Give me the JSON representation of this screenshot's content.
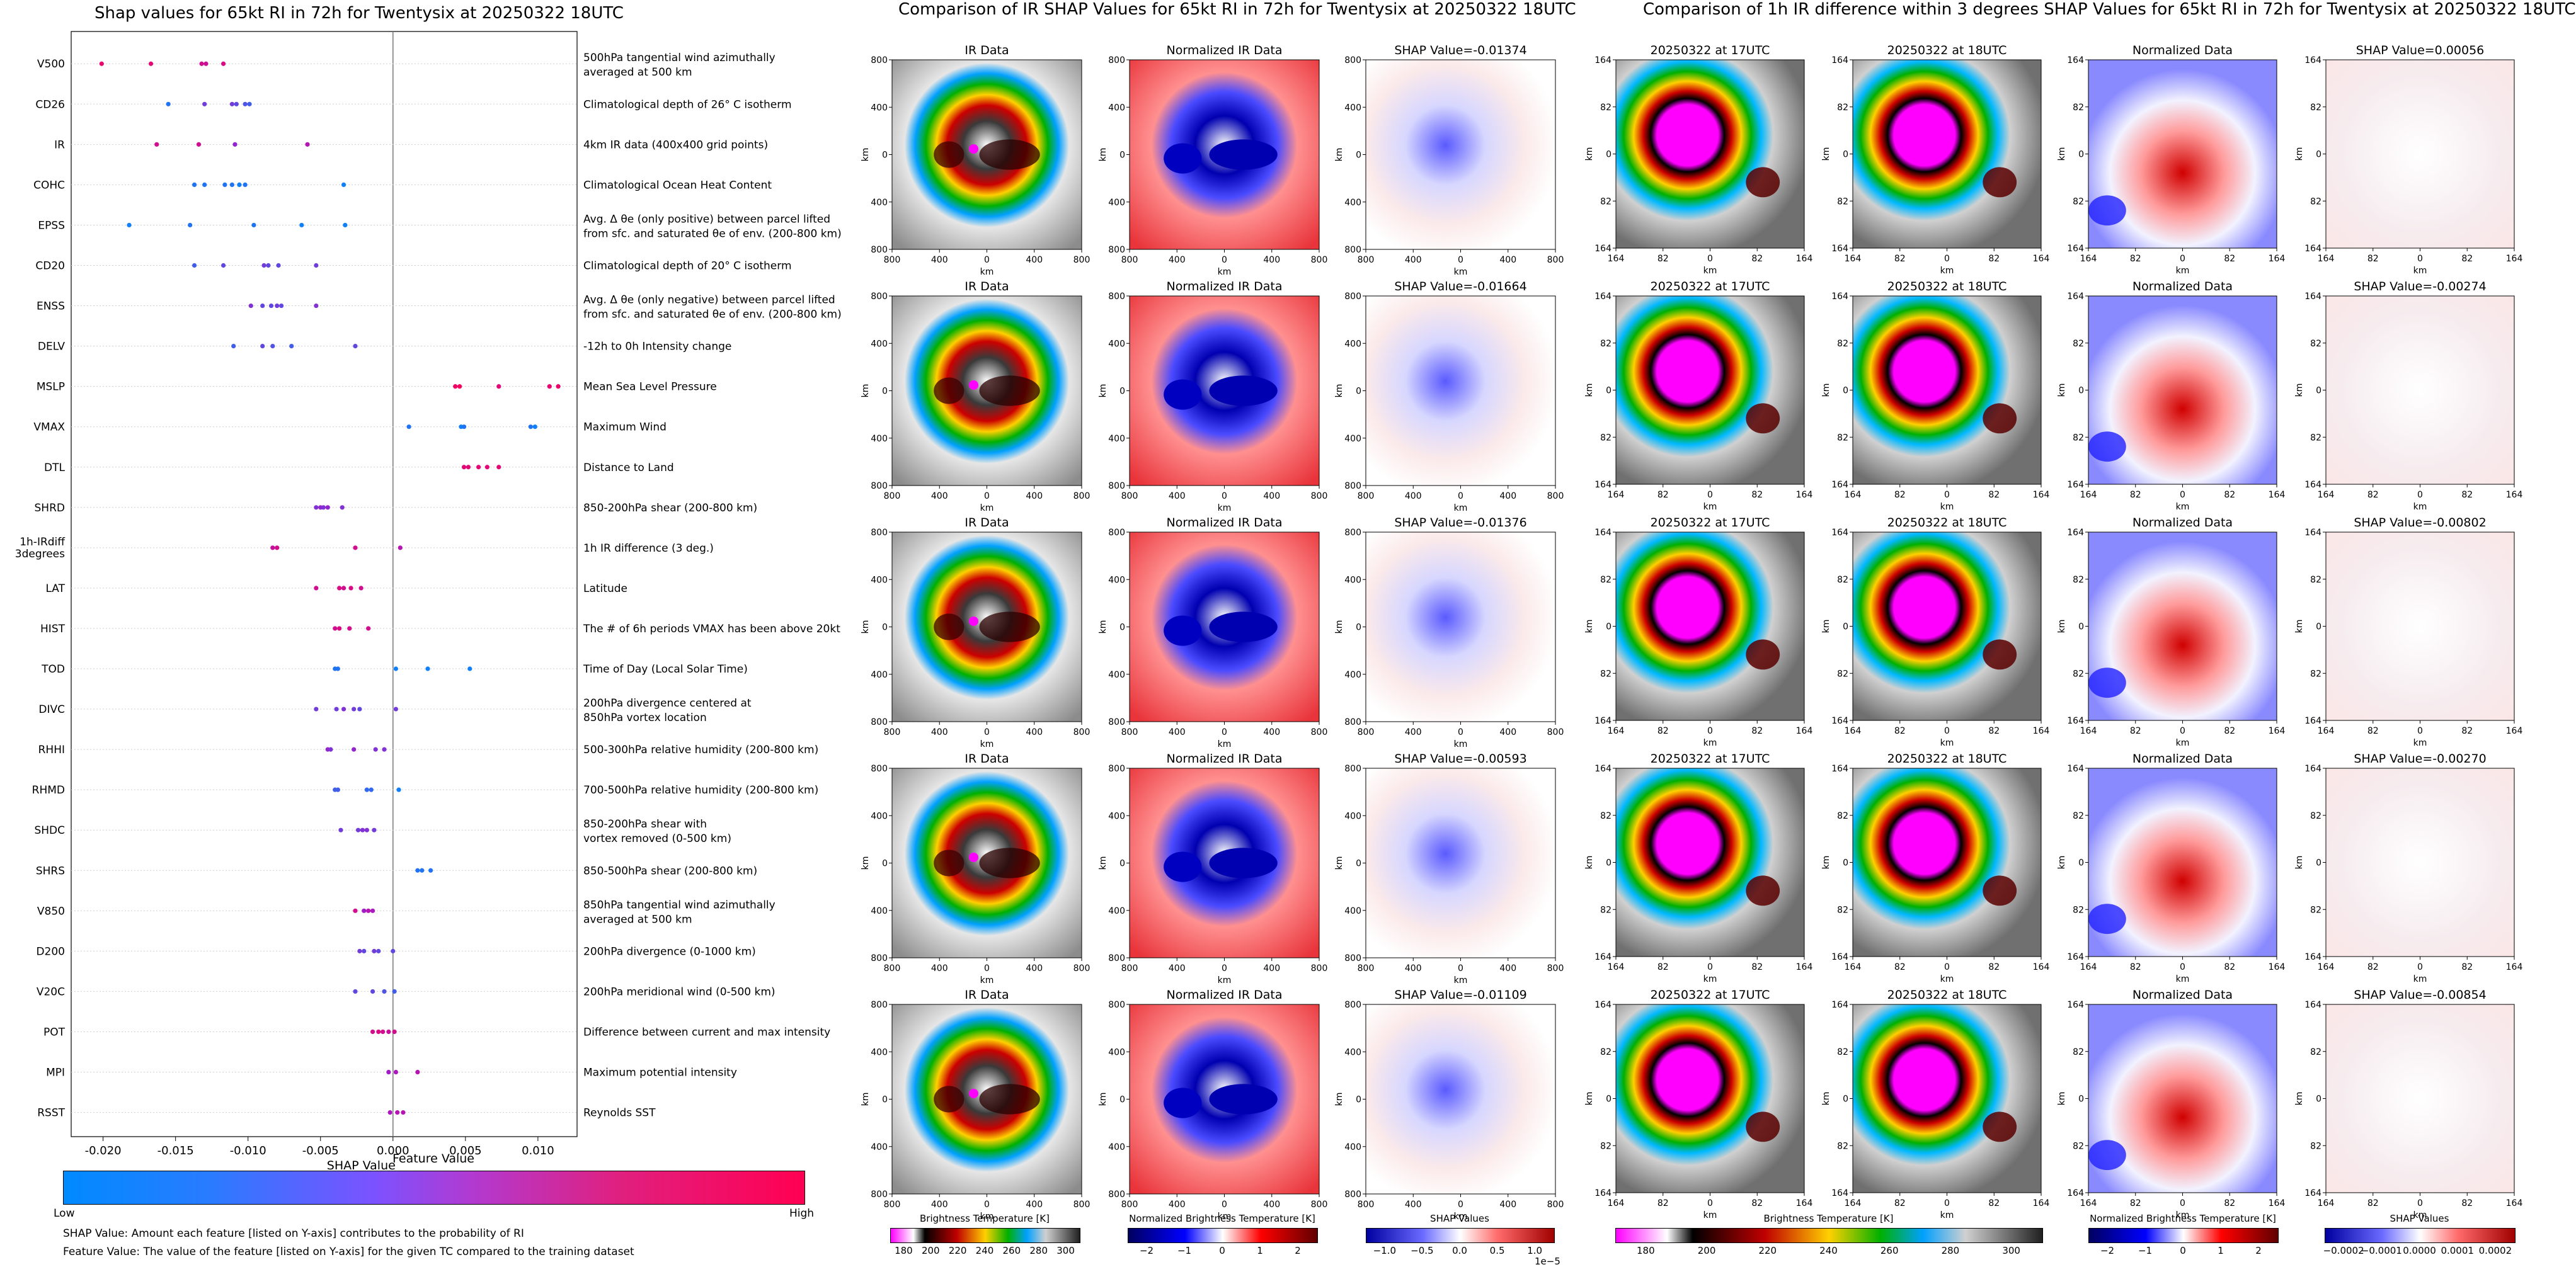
{
  "shap_title": "Shap values for 65kt RI in 72h for Twentysix at 20250322 18UTC",
  "ir_title": "Comparison of IR SHAP Values for 65kt RI in 72h for Twentysix at 20250322 18UTC",
  "diff_title": "Comparison of 1h IR difference within 3 degrees SHAP Values for 65kt RI in 72h for Twentysix at 20250322 18UTC",
  "feature_colorbar": {
    "title": "Feature Value",
    "low": "Low",
    "high": "High",
    "low_color": "#1E88E5",
    "mid_color": "#7C52FF",
    "high_color": "#FF0052"
  },
  "notes": [
    "SHAP Value: Amount each feature [listed on Y-axis] contributes to the probability of RI",
    "Feature Value: The value of the feature [listed on Y-axis] for the given TC compared to the training dataset"
  ],
  "chart_data": [
    {
      "type": "scatter",
      "title": "Shap values for 65kt RI in 72h for Twentysix at 20250322 18UTC",
      "xlabel": "SHAP Value",
      "ylabel": "",
      "xlim": [
        -0.0222,
        0.0127
      ],
      "xticks": [
        "-0.020",
        "-0.015",
        "-0.010",
        "-0.005",
        "0.000",
        "0.005",
        "0.010"
      ],
      "xtick_values": [
        -0.02,
        -0.015,
        -0.01,
        -0.005,
        0.0,
        0.005,
        0.01
      ],
      "color_scale": [
        "#008AFF",
        "#A21BC9",
        "#FF0052"
      ],
      "features": [
        {
          "name": "V500",
          "desc": "500hPa tangential wind azimuthally|averaged at 500 km",
          "points": [
            [
              -0.0201,
              0.88
            ],
            [
              -0.0167,
              0.85
            ],
            [
              -0.0132,
              0.75
            ],
            [
              -0.0129,
              0.72
            ],
            [
              -0.0117,
              0.8
            ]
          ]
        },
        {
          "name": "CD26",
          "desc": "Climatological depth of 26° C isotherm",
          "points": [
            [
              -0.0155,
              0.1
            ],
            [
              -0.013,
              0.35
            ],
            [
              -0.0111,
              0.35
            ],
            [
              -0.0108,
              0.3
            ],
            [
              -0.0102,
              0.25
            ],
            [
              -0.0099,
              0.2
            ]
          ]
        },
        {
          "name": "IR",
          "desc": "4km IR data (400x400 grid points)",
          "points": [
            [
              -0.0163,
              0.75
            ],
            [
              -0.0134,
              0.75
            ],
            [
              -0.0109,
              0.45
            ],
            [
              -0.0059,
              0.6
            ]
          ]
        },
        {
          "name": "COHC",
          "desc": "Climatological Ocean Heat Content",
          "points": [
            [
              -0.0137,
              0.1
            ],
            [
              -0.013,
              0.1
            ],
            [
              -0.0116,
              0.1
            ],
            [
              -0.0111,
              0.1
            ],
            [
              -0.0106,
              0.05
            ],
            [
              -0.0102,
              0.1
            ],
            [
              -0.0034,
              0.05
            ]
          ]
        },
        {
          "name": "EPSS",
          "desc": "Avg. Δ θe (only positive) between parcel lifted|from sfc. and saturated θe of env. (200-800 km)",
          "points": [
            [
              -0.0182,
              0.05
            ],
            [
              -0.014,
              0.1
            ],
            [
              -0.0096,
              0.1
            ],
            [
              -0.0063,
              0.05
            ],
            [
              -0.0033,
              0.05
            ]
          ]
        },
        {
          "name": "CD20",
          "desc": "Climatological depth of 20° C isotherm",
          "points": [
            [
              -0.0137,
              0.2
            ],
            [
              -0.0117,
              0.3
            ],
            [
              -0.0089,
              0.35
            ],
            [
              -0.0086,
              0.3
            ],
            [
              -0.0079,
              0.3
            ],
            [
              -0.0053,
              0.35
            ]
          ]
        },
        {
          "name": "ENSS",
          "desc": "Avg. Δ θe (only negative) between parcel lifted|from sfc. and saturated θe of env. (200-800 km)",
          "points": [
            [
              -0.0098,
              0.4
            ],
            [
              -0.009,
              0.3
            ],
            [
              -0.0084,
              0.3
            ],
            [
              -0.008,
              0.35
            ],
            [
              -0.0077,
              0.3
            ],
            [
              -0.0053,
              0.4
            ]
          ]
        },
        {
          "name": "DELV",
          "desc": "-12h to 0h Intensity change",
          "points": [
            [
              -0.011,
              0.2
            ],
            [
              -0.009,
              0.3
            ],
            [
              -0.0083,
              0.25
            ],
            [
              -0.007,
              0.2
            ],
            [
              -0.0026,
              0.3
            ]
          ]
        },
        {
          "name": "MSLP",
          "desc": "Mean Sea Level Pressure",
          "points": [
            [
              0.0043,
              0.92
            ],
            [
              0.0046,
              0.95
            ],
            [
              0.0073,
              0.85
            ],
            [
              0.0108,
              0.88
            ],
            [
              0.0114,
              0.9
            ]
          ]
        },
        {
          "name": "VMAX",
          "desc": "Maximum Wind",
          "points": [
            [
              0.0011,
              0.1
            ],
            [
              0.0047,
              0.05
            ],
            [
              0.0049,
              0.1
            ],
            [
              0.0095,
              0.1
            ],
            [
              0.0098,
              0.05
            ]
          ]
        },
        {
          "name": "DTL",
          "desc": "Distance to Land",
          "points": [
            [
              0.0049,
              0.85
            ],
            [
              0.0052,
              0.85
            ],
            [
              0.0059,
              0.85
            ],
            [
              0.0065,
              0.85
            ],
            [
              0.0073,
              0.85
            ]
          ]
        },
        {
          "name": "SHRD",
          "desc": "850-200hPa shear (200-800 km)",
          "points": [
            [
              -0.0053,
              0.4
            ],
            [
              -0.005,
              0.45
            ],
            [
              -0.0048,
              0.4
            ],
            [
              -0.0045,
              0.45
            ],
            [
              -0.0035,
              0.4
            ]
          ]
        },
        {
          "name": "1h-IRdiff|3degrees",
          "desc": "1h IR difference (3 deg.)",
          "points": [
            [
              -0.0083,
              0.7
            ],
            [
              -0.008,
              0.75
            ],
            [
              -0.0026,
              0.75
            ],
            [
              0.0005,
              0.6
            ]
          ]
        },
        {
          "name": "LAT",
          "desc": "Latitude",
          "points": [
            [
              -0.0053,
              0.75
            ],
            [
              -0.0037,
              0.8
            ],
            [
              -0.0034,
              0.75
            ],
            [
              -0.0029,
              0.8
            ],
            [
              -0.0022,
              0.75
            ]
          ]
        },
        {
          "name": "HIST",
          "desc": "The # of 6h periods VMAX has been above 20kt",
          "points": [
            [
              -0.004,
              0.75
            ],
            [
              -0.0037,
              0.8
            ],
            [
              -0.003,
              0.75
            ],
            [
              -0.0017,
              0.75
            ]
          ]
        },
        {
          "name": "TOD",
          "desc": "Time of Day (Local Solar Time)",
          "points": [
            [
              -0.004,
              0.1
            ],
            [
              -0.0038,
              0.1
            ],
            [
              0.0002,
              0.05
            ],
            [
              0.0024,
              0.05
            ],
            [
              0.0053,
              0.05
            ]
          ]
        },
        {
          "name": "DIVC",
          "desc": "200hPa divergence centered at|850hPa vortex location",
          "points": [
            [
              -0.0053,
              0.35
            ],
            [
              -0.0039,
              0.35
            ],
            [
              -0.0034,
              0.4
            ],
            [
              -0.0027,
              0.35
            ],
            [
              -0.0023,
              0.3
            ],
            [
              0.0002,
              0.35
            ]
          ]
        },
        {
          "name": "RHHI",
          "desc": "500-300hPa relative humidity (200-800 km)",
          "points": [
            [
              -0.0045,
              0.45
            ],
            [
              -0.0043,
              0.4
            ],
            [
              -0.0027,
              0.45
            ],
            [
              -0.0012,
              0.4
            ],
            [
              -0.0006,
              0.4
            ]
          ]
        },
        {
          "name": "RHMD",
          "desc": "700-500hPa relative humidity (200-800 km)",
          "points": [
            [
              -0.004,
              0.2
            ],
            [
              -0.0038,
              0.2
            ],
            [
              -0.0018,
              0.15
            ],
            [
              -0.0015,
              0.15
            ],
            [
              0.0004,
              0.05
            ]
          ]
        },
        {
          "name": "SHDC",
          "desc": "850-200hPa shear with|vortex removed (0-500 km)",
          "points": [
            [
              -0.0036,
              0.35
            ],
            [
              -0.0024,
              0.35
            ],
            [
              -0.0021,
              0.4
            ],
            [
              -0.0018,
              0.4
            ],
            [
              -0.0013,
              0.35
            ]
          ]
        },
        {
          "name": "SHRS",
          "desc": "850-500hPa shear (200-800 km)",
          "points": [
            [
              0.0017,
              0.1
            ],
            [
              0.002,
              0.1
            ],
            [
              0.0026,
              0.1
            ]
          ]
        },
        {
          "name": "V850",
          "desc": "850hPa tangential wind azimuthally|averaged at 500 km",
          "points": [
            [
              -0.0026,
              0.75
            ],
            [
              -0.002,
              0.5
            ],
            [
              -0.0017,
              0.6
            ],
            [
              -0.0014,
              0.55
            ]
          ]
        },
        {
          "name": "D200",
          "desc": "200hPa divergence (0-1000 km)",
          "points": [
            [
              -0.0023,
              0.35
            ],
            [
              -0.002,
              0.3
            ],
            [
              -0.0013,
              0.35
            ],
            [
              -0.001,
              0.3
            ],
            [
              0.0,
              0.3
            ]
          ]
        },
        {
          "name": "V20C",
          "desc": "200hPa meridional wind (0-500 km)",
          "points": [
            [
              -0.0026,
              0.3
            ],
            [
              -0.0014,
              0.3
            ],
            [
              -0.0006,
              0.25
            ],
            [
              0.0001,
              0.2
            ]
          ]
        },
        {
          "name": "POT",
          "desc": "Difference between current and max intensity",
          "points": [
            [
              -0.0014,
              0.75
            ],
            [
              -0.001,
              0.8
            ],
            [
              -0.0007,
              0.75
            ],
            [
              -0.0003,
              0.7
            ],
            [
              0.0001,
              0.75
            ]
          ]
        },
        {
          "name": "MPI",
          "desc": "Maximum potential intensity",
          "points": [
            [
              -0.0003,
              0.5
            ],
            [
              0.0002,
              0.55
            ],
            [
              0.0017,
              0.6
            ]
          ]
        },
        {
          "name": "RSST",
          "desc": "Reynolds SST",
          "points": [
            [
              -0.0002,
              0.55
            ],
            [
              0.0003,
              0.6
            ],
            [
              0.0007,
              0.6
            ]
          ]
        }
      ]
    },
    {
      "type": "heatmap",
      "title": "Comparison of IR SHAP Values for 65kt RI in 72h for Twentysix at 20250322 18UTC",
      "columns": [
        {
          "label": "IR Data",
          "xlabel": "km",
          "ylabel": "km",
          "xticks": [
            "800",
            "400",
            "0",
            "400",
            "800"
          ],
          "yticks": [
            "800",
            "400",
            "0",
            "400",
            "800"
          ]
        },
        {
          "label": "Normalized IR Data",
          "xlabel": "km",
          "ylabel": "km",
          "xticks": [
            "800",
            "400",
            "0",
            "400",
            "800"
          ],
          "yticks": [
            "800",
            "400",
            "0",
            "400",
            "800"
          ]
        },
        {
          "label": "SHAP Value",
          "xlabel": "km",
          "ylabel": "km",
          "xticks": [
            "800",
            "400",
            "0",
            "400",
            "800"
          ],
          "yticks": [
            "800",
            "400",
            "0",
            "400",
            "800"
          ]
        }
      ],
      "shap_values": [
        "SHAP Value=-0.01374",
        "SHAP Value=-0.01664",
        "SHAP Value=-0.01376",
        "SHAP Value=-0.00593",
        "SHAP Value=-0.01109"
      ],
      "colorbars": [
        {
          "label": "Brightness Temperature [K]",
          "ticks": [
            "180",
            "200",
            "220",
            "240",
            "260",
            "280",
            "300"
          ]
        },
        {
          "label": "Normalized Brightness Temperature [K]",
          "ticks": [
            "−2",
            "−1",
            "0",
            "1",
            "2"
          ]
        },
        {
          "label": "SHAP Values",
          "ticks": [
            "−1.0",
            "−0.5",
            "0.0",
            "0.5",
            "1.0"
          ],
          "offset": "1e−5"
        }
      ]
    },
    {
      "type": "heatmap",
      "title": "Comparison of 1h IR difference within 3 degrees SHAP Values for 65kt RI in 72h for Twentysix at 20250322 18UTC",
      "columns": [
        {
          "label": "20250322 at 17UTC",
          "xlabel": "km",
          "ylabel": "km",
          "xticks": [
            "164",
            "82",
            "0",
            "82",
            "164"
          ],
          "yticks": [
            "164",
            "82",
            "0",
            "82",
            "164"
          ]
        },
        {
          "label": "20250322 at 18UTC",
          "xlabel": "km",
          "ylabel": "km",
          "xticks": [
            "164",
            "82",
            "0",
            "82",
            "164"
          ],
          "yticks": [
            "164",
            "82",
            "0",
            "82",
            "164"
          ]
        },
        {
          "label": "Normalized Data",
          "xlabel": "km",
          "ylabel": "km",
          "xticks": [
            "164",
            "82",
            "0",
            "82",
            "164"
          ],
          "yticks": [
            "164",
            "82",
            "0",
            "82",
            "164"
          ]
        },
        {
          "label": "SHAP Value",
          "xlabel": "km",
          "ylabel": "km",
          "xticks": [
            "164",
            "82",
            "0",
            "82",
            "164"
          ],
          "yticks": [
            "164",
            "82",
            "0",
            "82",
            "164"
          ]
        }
      ],
      "shap_values": [
        "SHAP Value=0.00056",
        "SHAP Value=-0.00274",
        "SHAP Value=-0.00802",
        "SHAP Value=-0.00270",
        "SHAP Value=-0.00854"
      ],
      "colorbars": [
        {
          "label": "Brightness Temperature [K]",
          "ticks": [
            "180",
            "200",
            "220",
            "240",
            "260",
            "280",
            "300"
          ]
        },
        {
          "label": "Normalized Brightness Temperature [K]",
          "ticks": [
            "−2",
            "−1",
            "0",
            "1",
            "2"
          ]
        },
        {
          "label": "SHAP Values",
          "ticks": [
            "−0.0002",
            "−0.0001",
            "0.0000",
            "0.0001",
            "0.0002"
          ]
        }
      ]
    }
  ]
}
